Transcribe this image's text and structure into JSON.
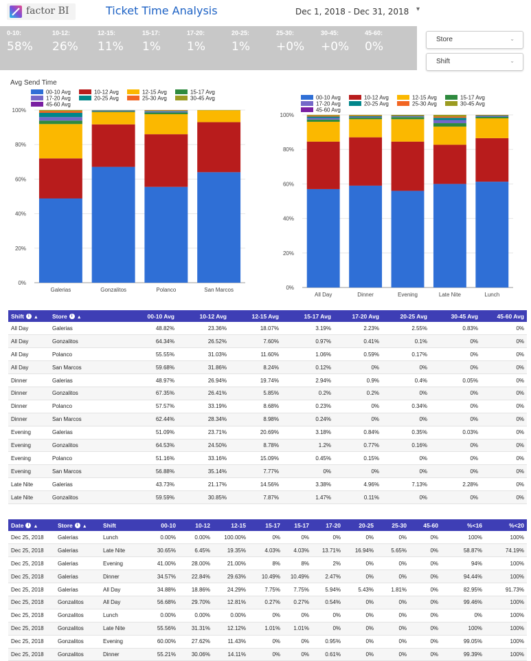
{
  "header": {
    "logo_text": "factor BI",
    "title": "Ticket Time Analysis",
    "date_range": "Dec 1, 2018 - Dec 31, 2018",
    "date_caret": "▾"
  },
  "kpis": [
    {
      "label": "0-10:",
      "value": "58%"
    },
    {
      "label": "10-12:",
      "value": "26%"
    },
    {
      "label": "12-15:",
      "value": "11%"
    },
    {
      "label": "15-17:",
      "value": "1%"
    },
    {
      "label": "17-20:",
      "value": "1%"
    },
    {
      "label": "20-25:",
      "value": "1%"
    },
    {
      "label": "25-30:",
      "value": "+0%"
    },
    {
      "label": "30-45:",
      "value": "+0%"
    },
    {
      "label": "45-60:",
      "value": "0%"
    }
  ],
  "filters": {
    "store_label": "Store",
    "shift_label": "Shift",
    "caret": "⌄"
  },
  "colors": {
    "00-10 Avg": "#2f6fd6",
    "10-12 Avg": "#b81c1c",
    "12-15 Avg": "#fbb800",
    "15-17 Avg": "#2e8a3e",
    "17-20 Avg": "#7467c8",
    "20-25 Avg": "#00868a",
    "25-30 Avg": "#f26522",
    "30-45 Avg": "#9b9b21",
    "45-60 Avg": "#7a1fa2"
  },
  "chart_data": [
    {
      "type": "bar",
      "stacked": true,
      "title": "Avg Send Time",
      "categories": [
        "Galerias",
        "Gonzalitos",
        "Polanco",
        "San Marcos"
      ],
      "ylim": [
        0,
        100
      ],
      "yticks": [
        "0%",
        "20%",
        "40%",
        "60%",
        "80%",
        "100%"
      ],
      "legend_position": "top-left",
      "grid": true,
      "series": [
        {
          "name": "00-10 Avg",
          "values": [
            48.8,
            67.1,
            55.5,
            64.0
          ]
        },
        {
          "name": "10-12 Avg",
          "values": [
            23.2,
            24.6,
            30.5,
            29.0
          ]
        },
        {
          "name": "12-15 Avg",
          "values": [
            19.9,
            7.1,
            11.6,
            6.9
          ]
        },
        {
          "name": "15-17 Avg",
          "values": [
            2.0,
            0.5,
            1.0,
            0.1
          ]
        },
        {
          "name": "17-20 Avg",
          "values": [
            2.0,
            0.3,
            0.5,
            0
          ]
        },
        {
          "name": "20-25 Avg",
          "values": [
            2.5,
            0.2,
            0.4,
            0
          ]
        },
        {
          "name": "25-30 Avg",
          "values": [
            1.0,
            0.1,
            0.3,
            0
          ]
        },
        {
          "name": "30-45 Avg",
          "values": [
            0.6,
            0.1,
            0.2,
            0
          ]
        },
        {
          "name": "45-60 Avg",
          "values": [
            0,
            0,
            0,
            0
          ]
        }
      ]
    },
    {
      "type": "bar",
      "stacked": true,
      "title": "",
      "categories": [
        "All Day",
        "Dinner",
        "Evening",
        "Late Nite",
        "Lunch"
      ],
      "ylim": [
        0,
        100
      ],
      "yticks": [
        "0%",
        "20%",
        "40%",
        "60%",
        "80%",
        "100%"
      ],
      "legend_position": "top-left",
      "grid": true,
      "series": [
        {
          "name": "00-10 Avg",
          "values": [
            57.0,
            59.0,
            56.0,
            60.0,
            61.3
          ]
        },
        {
          "name": "10-12 Avg",
          "values": [
            27.5,
            28.0,
            28.5,
            22.7,
            25.2
          ]
        },
        {
          "name": "12-15 Avg",
          "values": [
            11.5,
            10.5,
            13.0,
            10.5,
            11.5
          ]
        },
        {
          "name": "15-17 Avg",
          "values": [
            1.3,
            0.9,
            1.2,
            2.0,
            0.8
          ]
        },
        {
          "name": "17-20 Avg",
          "values": [
            0.9,
            0.4,
            0.4,
            1.8,
            0.5
          ]
        },
        {
          "name": "20-25 Avg",
          "values": [
            0.8,
            0.4,
            0.3,
            1.3,
            0.3
          ]
        },
        {
          "name": "25-30 Avg",
          "values": [
            0.5,
            0.3,
            0.2,
            0.7,
            0.2
          ]
        },
        {
          "name": "30-45 Avg",
          "values": [
            0.5,
            0.5,
            0.4,
            1.0,
            0.2
          ]
        },
        {
          "name": "45-60 Avg",
          "values": [
            0,
            0,
            0,
            0,
            0
          ]
        }
      ]
    }
  ],
  "table1": {
    "headers": [
      "Shift",
      "Store",
      "00-10 Avg",
      "10-12 Avg",
      "12-15 Avg",
      "15-17 Avg",
      "17-20 Avg",
      "20-25 Avg",
      "30-45 Avg",
      "45-60 Avg"
    ],
    "sort_glyph": "▲",
    "info_glyph": "i",
    "rows": [
      [
        "All Day",
        "Galerias",
        "48.82%",
        "23.36%",
        "18.07%",
        "3.19%",
        "2.23%",
        "2.55%",
        "0.83%",
        "0%"
      ],
      [
        "All Day",
        "Gonzalitos",
        "64.34%",
        "26.52%",
        "7.60%",
        "0.97%",
        "0.41%",
        "0.1%",
        "0%",
        "0%"
      ],
      [
        "All Day",
        "Polanco",
        "55.55%",
        "31.03%",
        "11.60%",
        "1.06%",
        "0.59%",
        "0.17%",
        "0%",
        "0%"
      ],
      [
        "All Day",
        "San Marcos",
        "59.68%",
        "31.86%",
        "8.24%",
        "0.12%",
        "0%",
        "0%",
        "0%",
        "0%"
      ],
      [
        "Dinner",
        "Galerias",
        "48.97%",
        "26.94%",
        "19.74%",
        "2.94%",
        "0.9%",
        "0.4%",
        "0.05%",
        "0%"
      ],
      [
        "Dinner",
        "Gonzalitos",
        "67.35%",
        "26.41%",
        "5.85%",
        "0.2%",
        "0.2%",
        "0%",
        "0%",
        "0%"
      ],
      [
        "Dinner",
        "Polanco",
        "57.57%",
        "33.19%",
        "8.68%",
        "0.23%",
        "0%",
        "0.34%",
        "0%",
        "0%"
      ],
      [
        "Dinner",
        "San Marcos",
        "62.44%",
        "28.34%",
        "8.98%",
        "0.24%",
        "0%",
        "0%",
        "0%",
        "0%"
      ],
      [
        "Evening",
        "Galerias",
        "51.09%",
        "23.71%",
        "20.69%",
        "3.18%",
        "0.84%",
        "0.35%",
        "0.03%",
        "0%"
      ],
      [
        "Evening",
        "Gonzalitos",
        "64.53%",
        "24.50%",
        "8.78%",
        "1.2%",
        "0.77%",
        "0.16%",
        "0%",
        "0%"
      ],
      [
        "Evening",
        "Polanco",
        "51.16%",
        "33.16%",
        "15.09%",
        "0.45%",
        "0.15%",
        "0%",
        "0%",
        "0%"
      ],
      [
        "Evening",
        "San Marcos",
        "56.88%",
        "35.14%",
        "7.77%",
        "0%",
        "0%",
        "0%",
        "0%",
        "0%"
      ],
      [
        "Late Nite",
        "Galerias",
        "43.73%",
        "21.17%",
        "14.56%",
        "3.38%",
        "4.96%",
        "7.13%",
        "2.28%",
        "0%"
      ],
      [
        "Late Nite",
        "Gonzalitos",
        "59.59%",
        "30.85%",
        "7.87%",
        "1.47%",
        "0.11%",
        "0%",
        "0%",
        "0%"
      ]
    ]
  },
  "table2": {
    "headers": [
      "Date",
      "Store",
      "Shift",
      "00-10",
      "10-12",
      "12-15",
      "15-17",
      "15-17",
      "17-20",
      "20-25",
      "25-30",
      "45-60",
      "%<16",
      "%<20"
    ],
    "sort_glyph": "▲",
    "info_glyph": "i",
    "rows": [
      [
        "Dec 25, 2018",
        "Galerias",
        "Lunch",
        "0.00%",
        "0.00%",
        "100.00%",
        "0%",
        "0%",
        "0%",
        "0%",
        "0%",
        "0%",
        "100%",
        "100%"
      ],
      [
        "Dec 25, 2018",
        "Galerias",
        "Late Nite",
        "30.65%",
        "6.45%",
        "19.35%",
        "4.03%",
        "4.03%",
        "13.71%",
        "16.94%",
        "5.65%",
        "0%",
        "58.87%",
        "74.19%"
      ],
      [
        "Dec 25, 2018",
        "Galerias",
        "Evening",
        "41.00%",
        "28.00%",
        "21.00%",
        "8%",
        "8%",
        "2%",
        "0%",
        "0%",
        "0%",
        "94%",
        "100%"
      ],
      [
        "Dec 25, 2018",
        "Galerias",
        "Dinner",
        "34.57%",
        "22.84%",
        "29.63%",
        "10.49%",
        "10.49%",
        "2.47%",
        "0%",
        "0%",
        "0%",
        "94.44%",
        "100%"
      ],
      [
        "Dec 25, 2018",
        "Galerias",
        "All Day",
        "34.88%",
        "18.86%",
        "24.29%",
        "7.75%",
        "7.75%",
        "5.94%",
        "5.43%",
        "1.81%",
        "0%",
        "82.95%",
        "91.73%"
      ],
      [
        "Dec 25, 2018",
        "Gonzalitos",
        "All Day",
        "56.68%",
        "29.70%",
        "12.81%",
        "0.27%",
        "0.27%",
        "0.54%",
        "0%",
        "0%",
        "0%",
        "99.46%",
        "100%"
      ],
      [
        "Dec 25, 2018",
        "Gonzalitos",
        "Lunch",
        "0.00%",
        "0.00%",
        "0.00%",
        "0%",
        "0%",
        "0%",
        "0%",
        "0%",
        "0%",
        "0%",
        "100%"
      ],
      [
        "Dec 25, 2018",
        "Gonzalitos",
        "Late Nite",
        "55.56%",
        "31.31%",
        "12.12%",
        "1.01%",
        "1.01%",
        "0%",
        "0%",
        "0%",
        "0%",
        "100%",
        "100%"
      ],
      [
        "Dec 25, 2018",
        "Gonzalitos",
        "Evening",
        "60.00%",
        "27.62%",
        "11.43%",
        "0%",
        "0%",
        "0.95%",
        "0%",
        "0%",
        "0%",
        "99.05%",
        "100%"
      ],
      [
        "Dec 25, 2018",
        "Gonzalitos",
        "Dinner",
        "55.21%",
        "30.06%",
        "14.11%",
        "0%",
        "0%",
        "0.61%",
        "0%",
        "0%",
        "0%",
        "99.39%",
        "100%"
      ]
    ]
  }
}
